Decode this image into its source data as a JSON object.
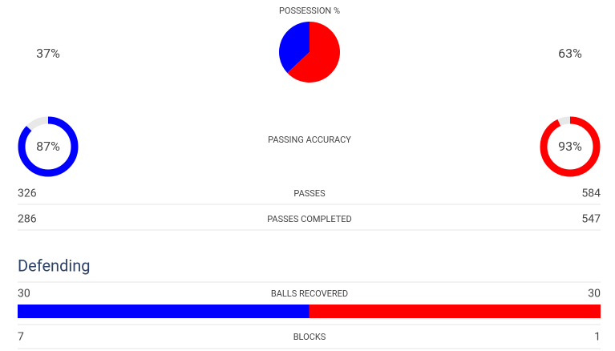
{
  "possession": {
    "title": "POSSESSION %",
    "values": [
      37,
      63
    ],
    "value_labels": [
      "37%",
      "63%"
    ]
  },
  "colors": [
    "#0000ff",
    "#ff0000"
  ],
  "track_color": "#e8e8e8",
  "passing_accuracy": {
    "title": "PASSING ACCURACY",
    "values": [
      87,
      93
    ],
    "value_labels": [
      "87%",
      "93%"
    ]
  },
  "rows": [
    {
      "label": "PASSES",
      "values": [
        326,
        584
      ]
    },
    {
      "label": "PASSES COMPLETED",
      "values": [
        286,
        547
      ]
    }
  ],
  "defending": {
    "title": "Defending",
    "rows": [
      {
        "label": "BALLS RECOVERED",
        "values": [
          30,
          30
        ]
      },
      {
        "label": "BLOCKS",
        "values": [
          7,
          1
        ]
      }
    ]
  }
}
